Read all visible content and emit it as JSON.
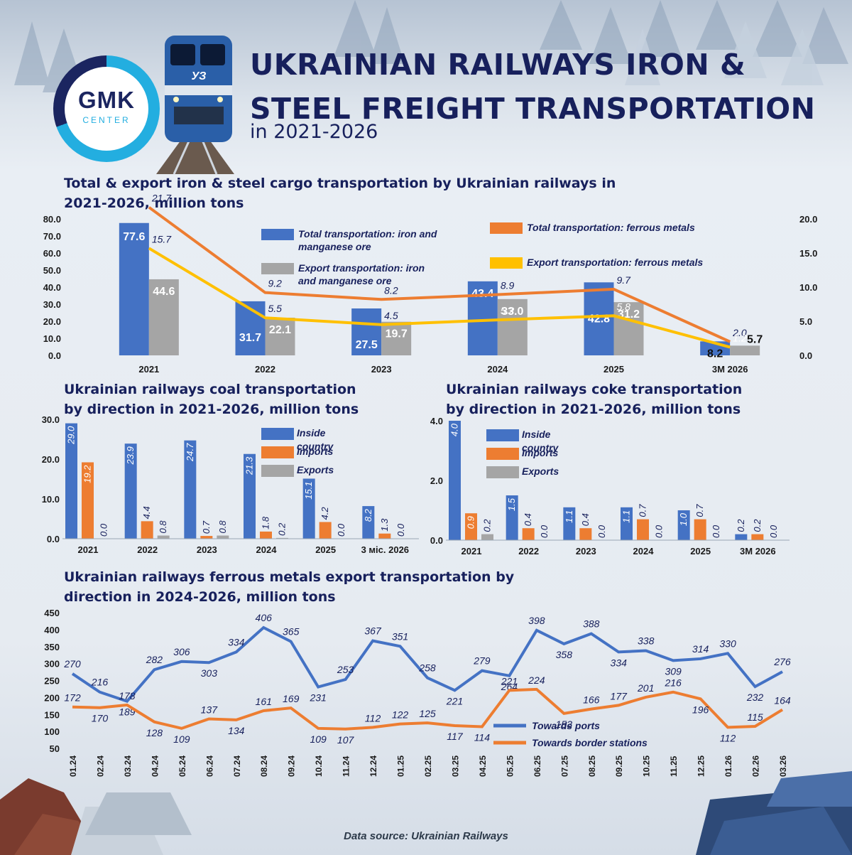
{
  "header": {
    "title": "UKRAINIAN RAILWAYS IRON & STEEL FREIGHT TRANSPORTATION",
    "subtitle": "in 2021-2026",
    "logo_main": "GMK",
    "logo_sub": "CENTER",
    "loco_mark": "УЗ"
  },
  "footer": {
    "source": "Data source: Ukrainian Railways"
  },
  "colors": {
    "blue": "#4472c4",
    "gray": "#a5a5a5",
    "orange": "#ed7d31",
    "yellow": "#ffc000",
    "navy": "#17205c"
  },
  "chart_data": [
    {
      "type": "bar",
      "title": "Total & export iron & steel cargo transportation by Ukrainian railways in 2021-2026, million tons",
      "categories": [
        "2021",
        "2022",
        "2023",
        "2024",
        "2025",
        "3M  2026"
      ],
      "ylim": [
        0,
        80
      ],
      "y2lim": [
        0,
        20
      ],
      "yticks": [
        "0.0",
        "10.0",
        "20.0",
        "30.0",
        "40.0",
        "50.0",
        "60.0",
        "70.0",
        "80.0"
      ],
      "y2ticks": [
        "0.0",
        "5.0",
        "10.0",
        "15.0",
        "20.0"
      ],
      "series": [
        {
          "name": "Total transportation: iron and manganese ore",
          "type": "bar",
          "axis": "left",
          "color": "#4472c4",
          "values": [
            77.6,
            31.7,
            27.5,
            43.4,
            42.8,
            8.2
          ],
          "labels": [
            "77.6",
            "31.7",
            "27.5",
            "43.4",
            "42.8",
            "8.2"
          ]
        },
        {
          "name": "Export transportation: iron and manganese ore",
          "type": "bar",
          "axis": "left",
          "color": "#a5a5a5",
          "values": [
            44.6,
            22.1,
            19.7,
            33.0,
            31.2,
            5.7
          ],
          "labels": [
            "44.6",
            "22.1",
            "19.7",
            "33.0",
            "31.2",
            "5.7"
          ]
        },
        {
          "name": "Total transportation: ferrous metals",
          "type": "line",
          "axis": "right",
          "color": "#ed7d31",
          "values": [
            21.7,
            9.2,
            8.2,
            8.9,
            9.7,
            2.0
          ],
          "labels": [
            "21.7",
            "9.2",
            "8.2",
            "8.9",
            "9.7",
            "2.0"
          ]
        },
        {
          "name": "Export transportation: ferrous metals",
          "type": "line",
          "axis": "right",
          "color": "#ffc000",
          "values": [
            15.7,
            5.5,
            4.5,
            5.2,
            5.8,
            1.2
          ],
          "labels": [
            "15.7",
            "5.5",
            "4.5",
            "5.2",
            "5.8",
            "1.2"
          ]
        }
      ]
    },
    {
      "type": "bar",
      "title": "Ukrainian railways coal transportation by direction in 2021-2026, million tons",
      "categories": [
        "2021",
        "2022",
        "2023",
        "2024",
        "2025",
        "3 міс. 2026"
      ],
      "ylim": [
        0,
        30
      ],
      "yticks": [
        "0.0",
        "10.0",
        "20.0",
        "30.0"
      ],
      "series": [
        {
          "name": "Inside country",
          "color": "#4472c4",
          "values": [
            29.0,
            23.9,
            24.7,
            21.3,
            15.1,
            8.2
          ],
          "labels": [
            "29.0",
            "23.9",
            "24.7",
            "21.3",
            "15.1",
            "8.2"
          ]
        },
        {
          "name": "Imports",
          "color": "#ed7d31",
          "values": [
            19.2,
            4.4,
            0.7,
            1.8,
            4.2,
            1.3
          ],
          "labels": [
            "19.2",
            "4.4",
            "0.7",
            "1.8",
            "4.2",
            "1.3"
          ]
        },
        {
          "name": "Exports",
          "color": "#a5a5a5",
          "values": [
            0.0,
            0.8,
            0.8,
            0.2,
            0.0,
            0.0
          ],
          "labels": [
            "0.0",
            "0.8",
            "0.8",
            "0.2",
            "0.0",
            "0.0"
          ]
        }
      ]
    },
    {
      "type": "bar",
      "title": "Ukrainian railways coke transportation by direction in 2021-2026, million tons",
      "categories": [
        "2021",
        "2022",
        "2023",
        "2024",
        "2025",
        "3M  2026"
      ],
      "ylim": [
        0,
        4
      ],
      "yticks": [
        "0.0",
        "2.0",
        "4.0"
      ],
      "series": [
        {
          "name": "Inside country",
          "color": "#4472c4",
          "values": [
            4.0,
            1.5,
            1.1,
            1.1,
            1.0,
            0.2
          ],
          "labels": [
            "4.0",
            "1.5",
            "1.1",
            "1.1",
            "1.0",
            "0.2"
          ]
        },
        {
          "name": "Imports",
          "color": "#ed7d31",
          "values": [
            0.9,
            0.4,
            0.4,
            0.7,
            0.7,
            0.2
          ],
          "labels": [
            "0.9",
            "0.4",
            "0.4",
            "0.7",
            "0.7",
            "0.2"
          ]
        },
        {
          "name": "Exports",
          "color": "#a5a5a5",
          "values": [
            0.2,
            0.0,
            0.0,
            0.0,
            0.0,
            0.0
          ],
          "labels": [
            "0.2",
            "0.0",
            "0.0",
            "0.0",
            "0.0",
            "0.0"
          ]
        }
      ]
    },
    {
      "type": "line",
      "title": "Ukrainian railways ferrous metals export transportation by direction in 2024-2026, million tons",
      "x": [
        "01.24",
        "02.24",
        "03.24",
        "04.24",
        "05.24",
        "06.24",
        "07.24",
        "08.24",
        "09.24",
        "10.24",
        "11.24",
        "12.24",
        "01.25",
        "02.25",
        "03.25",
        "04.25",
        "05.25",
        "06.25",
        "07.25",
        "08.25",
        "09.25",
        "10.25",
        "11.25",
        "12.25",
        "01.26",
        "02.26",
        "03.26"
      ],
      "ylim": [
        50,
        450
      ],
      "yticks": [
        "50",
        "100",
        "150",
        "200",
        "250",
        "300",
        "350",
        "400",
        "450"
      ],
      "series": [
        {
          "name": "Towards ports",
          "color": "#4472c4",
          "values": [
            270,
            216,
            189,
            282,
            306,
            303,
            334,
            406,
            365,
            231,
            253,
            367,
            351,
            258,
            221,
            279,
            264,
            398,
            358,
            388,
            334,
            338,
            309,
            314,
            330,
            232,
            276
          ]
        },
        {
          "name": "Towards border stations",
          "color": "#ed7d31",
          "values": [
            172,
            170,
            178,
            128,
            109,
            137,
            134,
            161,
            169,
            109,
            107,
            112,
            122,
            125,
            117,
            114,
            221,
            224,
            153,
            166,
            177,
            201,
            216,
            196,
            112,
            115,
            164
          ]
        }
      ]
    }
  ]
}
